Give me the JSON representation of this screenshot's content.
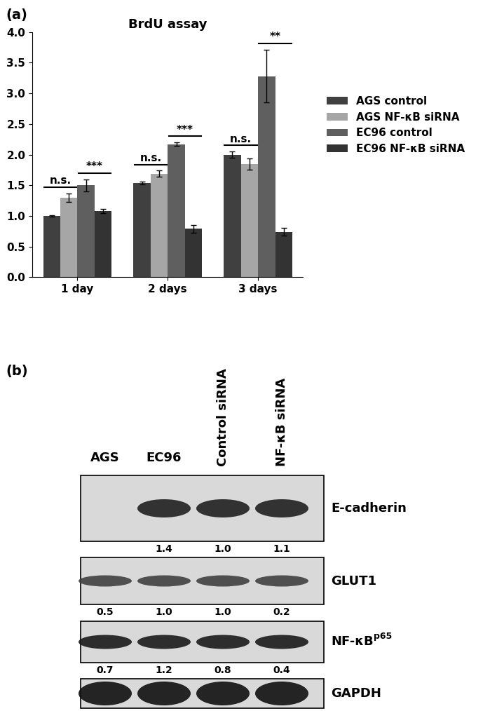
{
  "panel_labels": [
    "(a)",
    "(b)"
  ],
  "chart_data": {
    "type": "bar",
    "title": "BrdU assay",
    "categories": [
      "1 day",
      "2 days",
      "3 days"
    ],
    "series": [
      {
        "name": "AGS control",
        "color": "#404040",
        "values": [
          1.0,
          1.54,
          2.0
        ],
        "errors": [
          0.01,
          0.02,
          0.05
        ]
      },
      {
        "name": "AGS NF-κB siRNA",
        "color": "#a6a6a6",
        "values": [
          1.3,
          1.69,
          1.85
        ],
        "errors": [
          0.07,
          0.05,
          0.09
        ]
      },
      {
        "name": "EC96 control",
        "color": "#5f5f5f",
        "values": [
          1.5,
          2.17,
          3.28
        ],
        "errors": [
          0.1,
          0.03,
          0.43
        ]
      },
      {
        "name": "EC96 NF-κB siRNA",
        "color": "#333333",
        "values": [
          1.08,
          0.79,
          0.74
        ],
        "errors": [
          0.03,
          0.06,
          0.06
        ]
      }
    ],
    "ylim": [
      0,
      4
    ],
    "yticks": [
      {
        "value": 0,
        "label": "0.0"
      },
      {
        "value": 0.5,
        "label": "0.5"
      },
      {
        "value": 1,
        "label": "1.0"
      },
      {
        "value": 1.5,
        "label": "1.5"
      },
      {
        "value": 2,
        "label": "2.0"
      },
      {
        "value": 2.5,
        "label": "2.5"
      },
      {
        "value": 3,
        "label": "3.0"
      },
      {
        "value": 3.5,
        "label": "3.5"
      },
      {
        "value": 4,
        "label": "4.0"
      }
    ],
    "legend": "center left",
    "significance": [
      {
        "category": "1 day",
        "series": [
          "AGS control",
          "AGS NF-κB siRNA"
        ],
        "label": "n.s."
      },
      {
        "category": "1 day",
        "series": [
          "EC96 control",
          "EC96 NF-κB siRNA"
        ],
        "label": "***"
      },
      {
        "category": "2 days",
        "series": [
          "AGS control",
          "AGS NF-κB siRNA"
        ],
        "label": "n.s."
      },
      {
        "category": "2 days",
        "series": [
          "EC96 control",
          "EC96 NF-κB siRNA"
        ],
        "label": "***"
      },
      {
        "category": "3 days",
        "series": [
          "AGS control",
          "AGS NF-κB siRNA"
        ],
        "label": "n.s."
      },
      {
        "category": "3 days",
        "series": [
          "EC96 control",
          "EC96 NF-κB siRNA"
        ],
        "label": "**"
      }
    ]
  },
  "blot": {
    "lanes": [
      "AGS",
      "EC96",
      "Control siRNA",
      "NF-κB siRNA"
    ],
    "rows": [
      {
        "label": "E-cadherin",
        "bands": [
          false,
          true,
          true,
          true
        ],
        "values": [
          null,
          1.4,
          1.0,
          1.1
        ]
      },
      {
        "label": "GLUT1",
        "bands": [
          true,
          true,
          true,
          true
        ],
        "values": [
          0.5,
          1.0,
          1.0,
          0.2
        ]
      },
      {
        "label": "NF-κB",
        "superscript": "p65",
        "bands": [
          true,
          true,
          true,
          true
        ],
        "values": [
          0.7,
          1.2,
          0.8,
          0.4
        ]
      },
      {
        "label": "GAPDH",
        "bands": [
          true,
          true,
          true,
          true
        ],
        "values": [
          null,
          null,
          null,
          null
        ]
      }
    ]
  }
}
